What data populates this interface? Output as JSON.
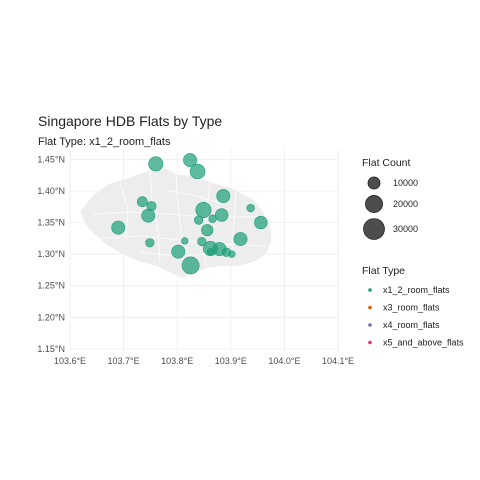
{
  "chart_data": {
    "type": "scatter",
    "title": "Singapore HDB Flats by Type",
    "subtitle": "Flat Type: x1_2_room_flats",
    "xlabel": "",
    "ylabel": "",
    "xlim": [
      103.6,
      104.1
    ],
    "ylim": [
      1.145,
      1.465
    ],
    "x_ticks": [
      103.6,
      103.7,
      103.8,
      103.9,
      104.0,
      104.1
    ],
    "x_tick_labels": [
      "103.6°E",
      "103.7°E",
      "103.8°E",
      "103.9°E",
      "104.0°E",
      "104.1°E"
    ],
    "y_ticks": [
      1.15,
      1.2,
      1.25,
      1.3,
      1.35,
      1.4,
      1.45
    ],
    "y_tick_labels": [
      "1.15°N",
      "1.20°N",
      "1.25°N",
      "1.30°N",
      "1.35°N",
      "1.40°N",
      "1.45°N"
    ],
    "grid": true,
    "size_legend": {
      "title": "Flat Count",
      "entries": [
        {
          "label": "10000",
          "value": 10000
        },
        {
          "label": "20000",
          "value": 20000
        },
        {
          "label": "30000",
          "value": 30000
        }
      ]
    },
    "color_legend": {
      "title": "Flat Type",
      "entries": [
        {
          "label": "x1_2_room_flats",
          "color": "#1b9e77"
        },
        {
          "label": "x3_room_flats",
          "color": "#d95f02"
        },
        {
          "label": "x4_room_flats",
          "color": "#7570b3"
        },
        {
          "label": "x5_and_above_flats",
          "color": "#e7298a"
        }
      ]
    },
    "series": [
      {
        "name": "x1_2_room_flats",
        "color": "#1b9e77",
        "points": [
          {
            "lon": 103.76,
            "lat": 1.443,
            "count": 14000
          },
          {
            "lon": 103.824,
            "lat": 1.449,
            "count": 12000
          },
          {
            "lon": 103.838,
            "lat": 1.431,
            "count": 15000
          },
          {
            "lon": 103.735,
            "lat": 1.383,
            "count": 7000
          },
          {
            "lon": 103.752,
            "lat": 1.376,
            "count": 6000
          },
          {
            "lon": 103.746,
            "lat": 1.361,
            "count": 12000
          },
          {
            "lon": 103.69,
            "lat": 1.342,
            "count": 12000
          },
          {
            "lon": 103.849,
            "lat": 1.37,
            "count": 16000
          },
          {
            "lon": 103.886,
            "lat": 1.392,
            "count": 12000
          },
          {
            "lon": 103.883,
            "lat": 1.362,
            "count": 11000
          },
          {
            "lon": 103.84,
            "lat": 1.354,
            "count": 5000
          },
          {
            "lon": 103.866,
            "lat": 1.356,
            "count": 4000
          },
          {
            "lon": 103.856,
            "lat": 1.338,
            "count": 9000
          },
          {
            "lon": 103.846,
            "lat": 1.32,
            "count": 5000
          },
          {
            "lon": 103.814,
            "lat": 1.321,
            "count": 3000
          },
          {
            "lon": 103.802,
            "lat": 1.304,
            "count": 12000
          },
          {
            "lon": 103.749,
            "lat": 1.318,
            "count": 5000
          },
          {
            "lon": 103.825,
            "lat": 1.282,
            "count": 20000
          },
          {
            "lon": 103.862,
            "lat": 1.309,
            "count": 14000
          },
          {
            "lon": 103.879,
            "lat": 1.308,
            "count": 12000
          },
          {
            "lon": 103.892,
            "lat": 1.303,
            "count": 5000
          },
          {
            "lon": 103.918,
            "lat": 1.324,
            "count": 12000
          },
          {
            "lon": 103.937,
            "lat": 1.373,
            "count": 4000
          },
          {
            "lon": 103.956,
            "lat": 1.35,
            "count": 11000
          },
          {
            "lon": 103.862,
            "lat": 1.304,
            "count": 3000
          },
          {
            "lon": 103.902,
            "lat": 1.3,
            "count": 3000
          }
        ]
      }
    ]
  }
}
